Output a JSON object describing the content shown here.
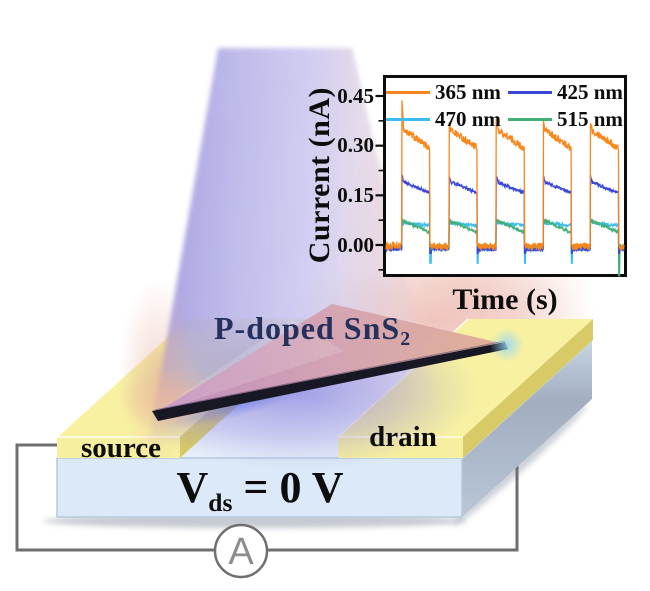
{
  "figure": {
    "device": {
      "flake_label_main": "P-doped SnS",
      "flake_label_sub": "2",
      "source_label": "source",
      "drain_label": "drain",
      "bias_pre": "V",
      "bias_sub": "ds",
      "bias_post": " = 0 V",
      "ammeter_label": "A",
      "colors": {
        "electrode_front": "#f6efa0",
        "electrode_top": "#f7f1a1",
        "electrode_side": "#d8ca66",
        "substrate_front": "#dce9f8",
        "substrate_side": "#a8b4c4",
        "wire": "#6f6f6f",
        "flake_edge": "#181824",
        "flake_surface_left": "#c08cbe",
        "flake_surface_right": "#e0ae96",
        "beam_purple": "#b6b2e8",
        "beam_pink": "#e8a596",
        "flake_text": "#25305c"
      }
    },
    "chart_data": {
      "type": "line",
      "title": "",
      "xlabel": "Time (s)",
      "ylabel": "Current (nA)",
      "ylim": [
        -0.088,
        0.504
      ],
      "yticks": [
        0.45,
        0.3,
        0.15,
        0.0
      ],
      "ytick_labels": [
        "0.45",
        "0.30",
        "0.15",
        "0.00"
      ],
      "yticks_minor": [
        0.375,
        0.225,
        0.075,
        -0.075
      ],
      "x_axis_note": "no numeric x ticks shown; 5 equal illumination pulses",
      "legend_position": "top-inside",
      "grid": false,
      "pulses": {
        "count": 5,
        "first_rise_frac": 0.067,
        "period_frac": 0.198,
        "on_frac": 0.1176
      },
      "series": [
        {
          "label": "365 nm",
          "color": "#f8861b",
          "off_level": -0.004,
          "overshoot_first": 0.45,
          "overshoot": 0.372,
          "on_start": 0.348,
          "on_end": 0.292,
          "noise": 0.011,
          "fall_dip": null,
          "last_fall_dip": null
        },
        {
          "label": "425 nm",
          "color": "#3847d8",
          "off_level": -0.013,
          "overshoot_first": 0.212,
          "overshoot": 0.208,
          "on_start": 0.19,
          "on_end": 0.157,
          "noise": 0.005,
          "fall_dip": -0.025,
          "last_fall_dip": -0.025
        },
        {
          "label": "470 nm",
          "color": "#3abdee",
          "off_level": -0.012,
          "overshoot_first": 0.068,
          "overshoot": 0.068,
          "on_start": 0.066,
          "on_end": 0.059,
          "noise": 0.0045,
          "fall_dip": -0.055,
          "last_fall_dip": -0.06
        },
        {
          "label": "515 nm",
          "color": "#41af76",
          "off_level": -0.004,
          "overshoot_first": 0.076,
          "overshoot": 0.076,
          "on_start": 0.073,
          "on_end": 0.038,
          "noise": 0.0045,
          "fall_dip": -0.02,
          "last_fall_dip": -0.093
        }
      ]
    }
  }
}
